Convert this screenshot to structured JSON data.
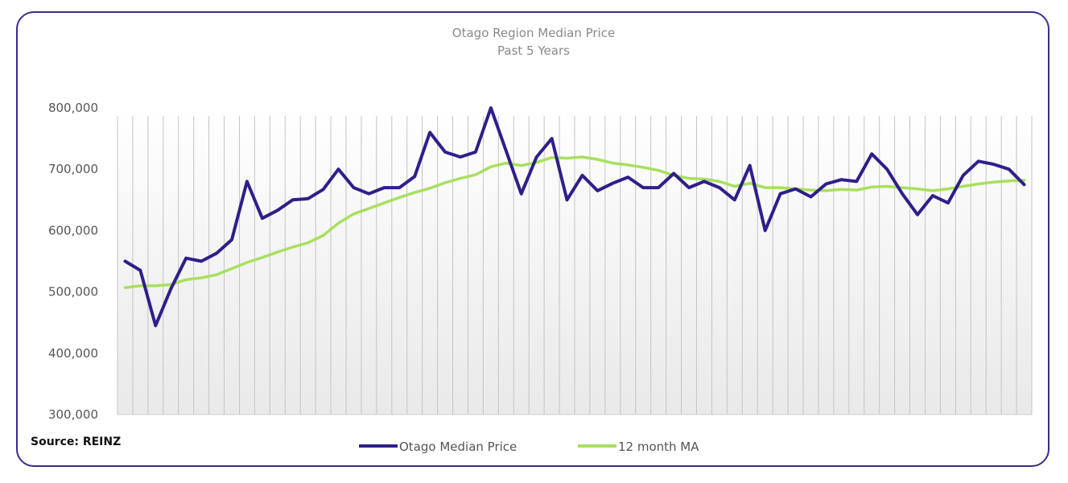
{
  "source": "Source: REINZ",
  "colors": {
    "primary": "#2e1f8a",
    "ma": "#a8e05f",
    "border": "#3d2a8c",
    "bars": "#c4c4c4"
  },
  "chart_data": {
    "type": "line",
    "title": "Otago Region Median Price",
    "subtitle": "Past 5 Years",
    "xlabel": "",
    "ylabel": "",
    "ylim": [
      300000,
      800000
    ],
    "yticks": [
      300000,
      400000,
      500000,
      600000,
      700000,
      800000
    ],
    "ytick_labels": [
      "300,000",
      "400,000",
      "500,000",
      "600,000",
      "700,000",
      "800,000"
    ],
    "grid": "vertical",
    "legend_position": "bottom",
    "series": [
      {
        "name": "Otago Median Price",
        "color": "#2e1f8a",
        "values": [
          550000,
          535000,
          445000,
          505000,
          555000,
          550000,
          563000,
          585000,
          680000,
          620000,
          633000,
          650000,
          652000,
          667000,
          700000,
          670000,
          660000,
          670000,
          670000,
          688000,
          760000,
          728000,
          720000,
          728000,
          800000,
          730000,
          660000,
          720000,
          750000,
          650000,
          690000,
          665000,
          677000,
          687000,
          670000,
          670000,
          693000,
          670000,
          680000,
          670000,
          650000,
          706000,
          600000,
          660000,
          668000,
          655000,
          676000,
          683000,
          680000,
          725000,
          700000,
          660000,
          626000,
          657000,
          645000,
          690000,
          713000,
          708000,
          700000,
          675000
        ]
      },
      {
        "name": "12 month MA",
        "color": "#a8e05f",
        "values": [
          507000,
          510000,
          510000,
          512000,
          520000,
          523000,
          528000,
          538000,
          548000,
          556000,
          565000,
          573000,
          580000,
          592000,
          612000,
          627000,
          636000,
          645000,
          654000,
          662000,
          669000,
          678000,
          685000,
          691000,
          704000,
          710000,
          706000,
          711000,
          719000,
          718000,
          720000,
          716000,
          710000,
          707000,
          703000,
          698000,
          690000,
          685000,
          684000,
          680000,
          672000,
          677000,
          670000,
          670000,
          668000,
          666000,
          665000,
          667000,
          666000,
          671000,
          672000,
          670000,
          668000,
          665000,
          668000,
          672000,
          676000,
          679000,
          681000,
          682000
        ]
      }
    ]
  }
}
